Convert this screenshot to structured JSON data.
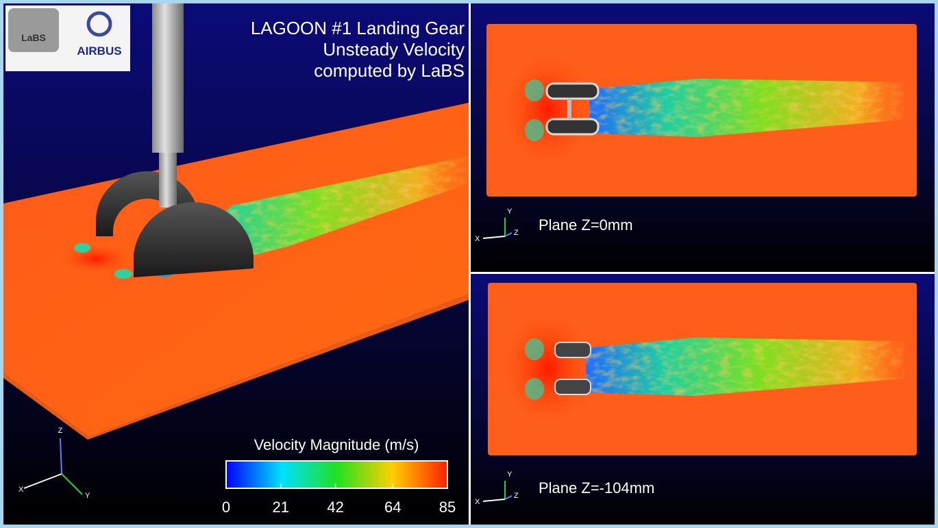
{
  "title_lines": [
    "LAGOON #1 Landing Gear",
    "Unsteady Velocity",
    "computed by LaBS"
  ],
  "logos": {
    "labs": "LaBS",
    "airbus": "AIRBUS"
  },
  "colorbar": {
    "title": "Velocity Magnitude (m/s)",
    "ticks": [
      0,
      21,
      42,
      64,
      85
    ]
  },
  "main_axes": {
    "x": "X",
    "y": "Y",
    "z": "Z"
  },
  "panels": [
    {
      "label": "Plane Z=0mm",
      "axes": {
        "x": "X",
        "y": "Y",
        "z": "Z"
      }
    },
    {
      "label": "Plane Z=-104mm",
      "axes": {
        "x": "X",
        "y": "Y",
        "z": "Z"
      }
    }
  ]
}
